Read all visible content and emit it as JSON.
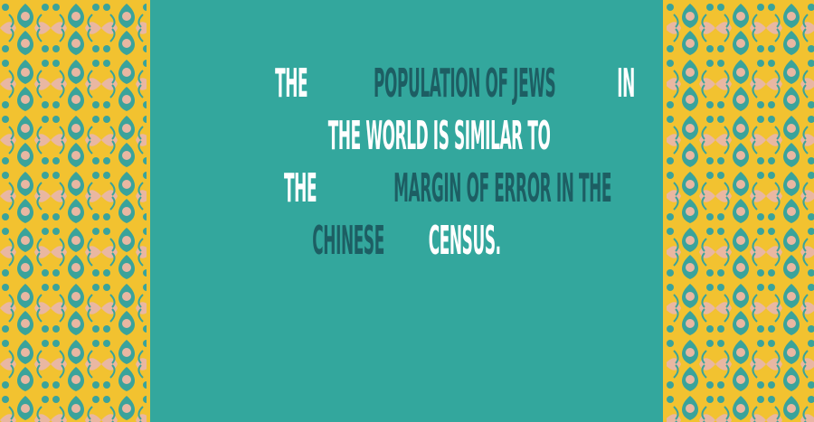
{
  "colors": {
    "background": "#33a79d",
    "pattern_base": "#f2c230",
    "pattern_motif": "#3aa39b",
    "pattern_accent": "#e9b7a2",
    "highlight_text": "#1d5e63",
    "plain_text": "#ffffff"
  },
  "decoration": {
    "left_border_icon": "ornamental-pattern-icon",
    "right_border_icon": "ornamental-pattern-icon"
  },
  "fact": {
    "lines": [
      [
        {
          "text": "THE ",
          "style": "plain"
        },
        {
          "text": "POPULATION OF JEWS",
          "style": "highlight"
        },
        {
          "text": " IN",
          "style": "plain"
        }
      ],
      [
        {
          "text": "THE WORLD IS SIMILAR TO",
          "style": "plain"
        }
      ],
      [
        {
          "text": "THE ",
          "style": "plain"
        },
        {
          "text": "MARGIN OF ERROR IN THE",
          "style": "highlight"
        }
      ],
      [
        {
          "text": "CHINESE ",
          "style": "highlight"
        },
        {
          "text": "CENSUS.",
          "style": "plain"
        }
      ]
    ]
  }
}
